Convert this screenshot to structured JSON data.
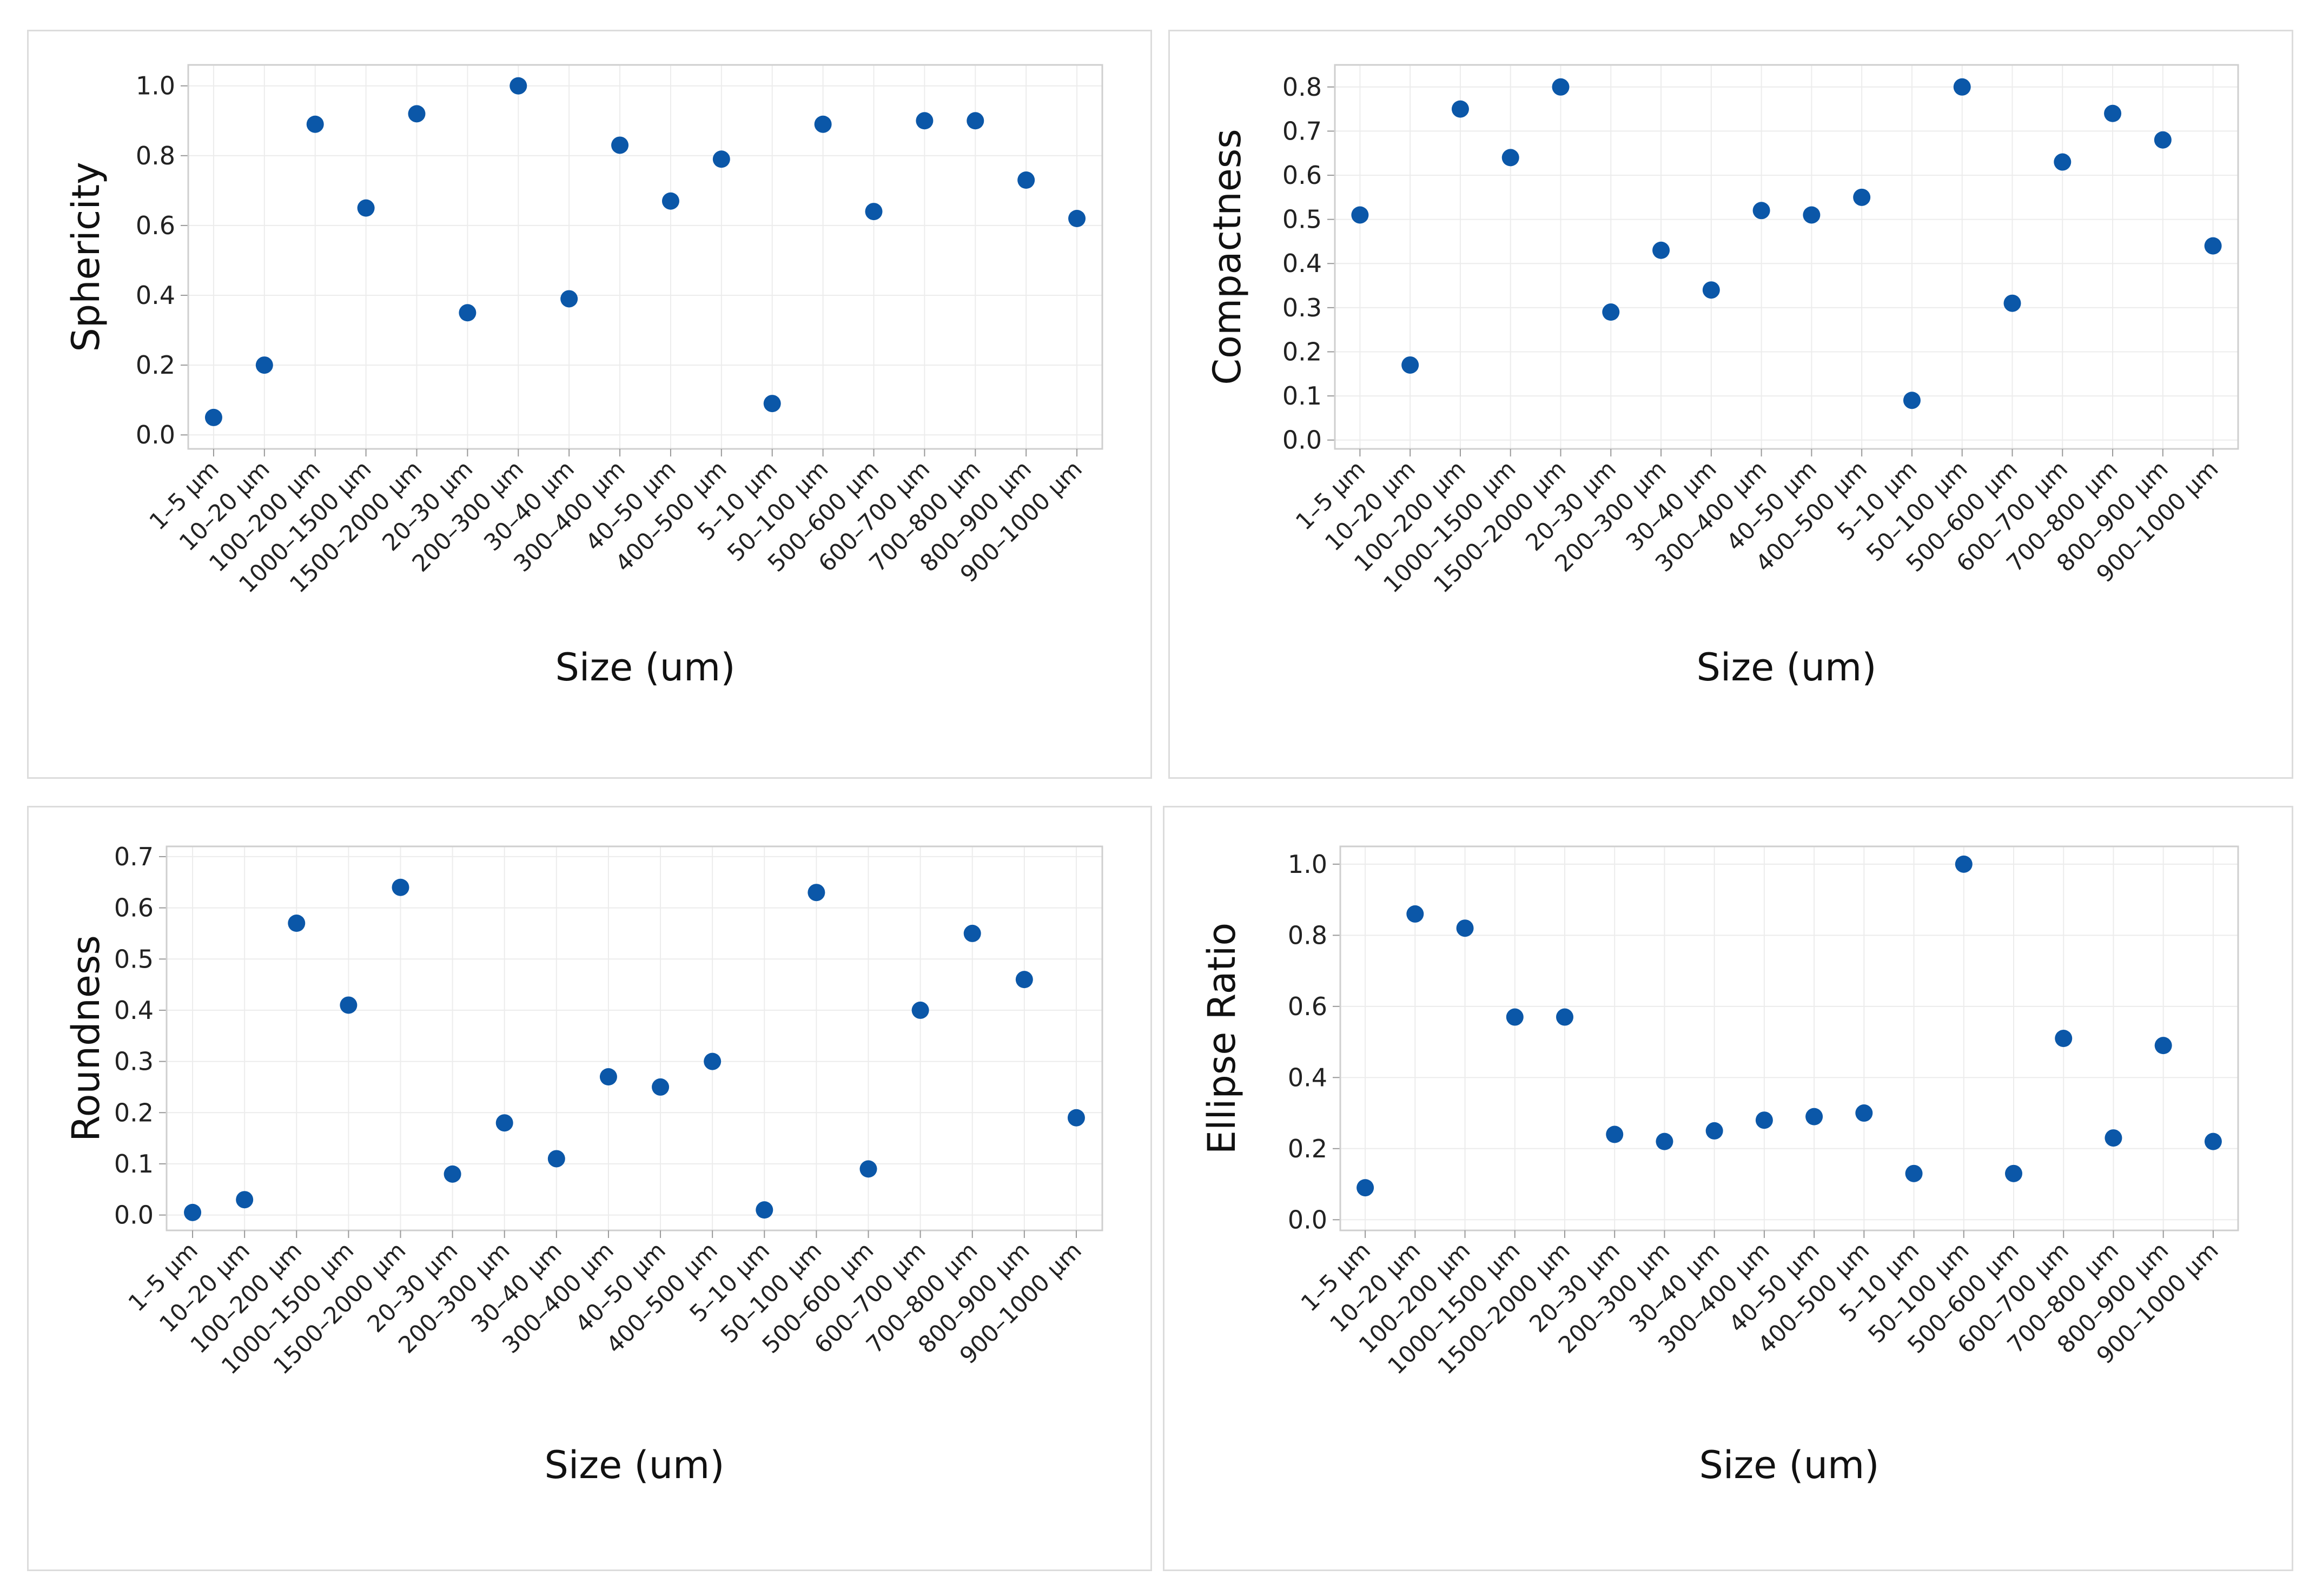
{
  "chart_data": [
    {
      "type": "scatter",
      "categories": [
        "1–5 µm",
        "10–20 µm",
        "100–200 µm",
        "1000–1500 µm",
        "1500–2000 µm",
        "20–30 µm",
        "200–300 µm",
        "30–40 µm",
        "300–400 µm",
        "40–50 µm",
        "400–500 µm",
        "5–10 µm",
        "50–100 µm",
        "500–600 µm",
        "600–700 µm",
        "700–800 µm",
        "800–900 µm",
        "900–1000 µm"
      ],
      "values": [
        0.05,
        0.2,
        0.89,
        0.65,
        0.92,
        0.35,
        1.0,
        0.39,
        0.83,
        0.67,
        0.79,
        0.09,
        0.89,
        0.64,
        0.9,
        0.9,
        0.73,
        0.62
      ],
      "xlabel": "Size (um)",
      "ylabel": "Sphericity",
      "ylim": [
        -0.04,
        1.06
      ],
      "yticks": [
        "0.0",
        "0.2",
        "0.4",
        "0.6",
        "0.8",
        "1.0"
      ],
      "grid": true,
      "marker_color": "#0b57a8"
    },
    {
      "type": "scatter",
      "categories": [
        "1–5 µm",
        "10–20 µm",
        "100–200 µm",
        "1000–1500 µm",
        "1500–2000 µm",
        "20–30 µm",
        "200–300 µm",
        "30–40 µm",
        "300–400 µm",
        "40–50 µm",
        "400–500 µm",
        "5–10 µm",
        "50–100 µm",
        "500–600 µm",
        "600–700 µm",
        "700–800 µm",
        "800–900 µm",
        "900–1000 µm"
      ],
      "values": [
        0.51,
        0.17,
        0.75,
        0.64,
        0.8,
        0.29,
        0.43,
        0.34,
        0.52,
        0.51,
        0.55,
        0.09,
        0.8,
        0.31,
        0.63,
        0.74,
        0.68,
        0.44
      ],
      "xlabel": "Size (um)",
      "ylabel": "Compactness",
      "ylim": [
        -0.02,
        0.85
      ],
      "yticks": [
        "0.0",
        "0.1",
        "0.2",
        "0.3",
        "0.4",
        "0.5",
        "0.6",
        "0.7",
        "0.8"
      ],
      "grid": true,
      "marker_color": "#0b57a8"
    },
    {
      "type": "scatter",
      "categories": [
        "1–5 µm",
        "10–20 µm",
        "100–200 µm",
        "1000–1500 µm",
        "1500–2000 µm",
        "20–30 µm",
        "200–300 µm",
        "30–40 µm",
        "300–400 µm",
        "40–50 µm",
        "400–500 µm",
        "5–10 µm",
        "50–100 µm",
        "500–600 µm",
        "600–700 µm",
        "700–800 µm",
        "800–900 µm",
        "900–1000 µm"
      ],
      "values": [
        0.005,
        0.03,
        0.57,
        0.41,
        0.64,
        0.08,
        0.18,
        0.11,
        0.27,
        0.25,
        0.3,
        0.01,
        0.63,
        0.09,
        0.4,
        0.55,
        0.46,
        0.19
      ],
      "xlabel": "Size (um)",
      "ylabel": "Roundness",
      "ylim": [
        -0.03,
        0.72
      ],
      "yticks": [
        "0.0",
        "0.1",
        "0.2",
        "0.3",
        "0.4",
        "0.5",
        "0.6",
        "0.7"
      ],
      "grid": true,
      "marker_color": "#0b57a8"
    },
    {
      "type": "scatter",
      "categories": [
        "1–5 µm",
        "10–20 µm",
        "100–200 µm",
        "1000–1500 µm",
        "1500–2000 µm",
        "20–30 µm",
        "200–300 µm",
        "30–40 µm",
        "300–400 µm",
        "40–50 µm",
        "400–500 µm",
        "5–10 µm",
        "50–100 µm",
        "500–600 µm",
        "600–700 µm",
        "700–800 µm",
        "800–900 µm",
        "900–1000 µm"
      ],
      "values": [
        0.09,
        0.86,
        0.82,
        0.57,
        0.57,
        0.24,
        0.22,
        0.25,
        0.28,
        0.29,
        0.3,
        0.13,
        1.0,
        0.13,
        0.51,
        0.23,
        0.49,
        0.22
      ],
      "xlabel": "Size (um)",
      "ylabel": "Ellipse Ratio",
      "ylim": [
        -0.03,
        1.05
      ],
      "yticks": [
        "0.0",
        "0.2",
        "0.4",
        "0.6",
        "0.8",
        "1.0"
      ],
      "grid": true,
      "marker_color": "#0b57a8"
    }
  ]
}
